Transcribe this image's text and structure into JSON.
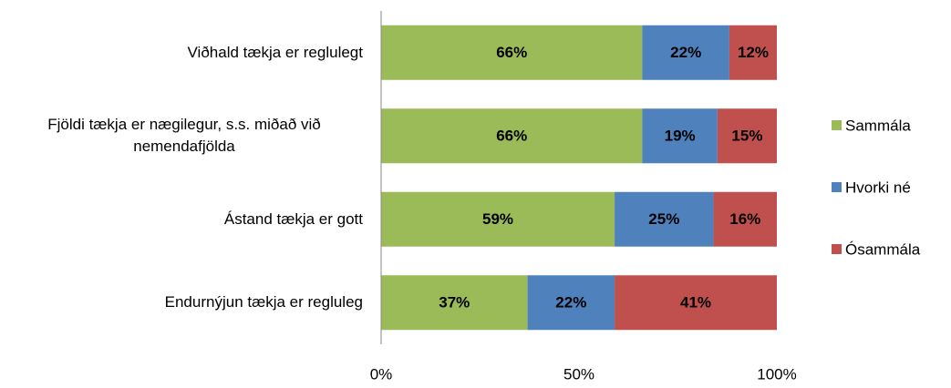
{
  "chart_data": {
    "type": "stacked-bar-horizontal",
    "categories": [
      "Viðhald tækja er reglulegt",
      "Fjöldi tækja er nægilegur, s.s. miðað við nemendafjölda",
      "Ástand tækja er gott",
      "Endurnýjun tækja er regluleg"
    ],
    "series": [
      {
        "name": "Sammála",
        "color": "#9bbb59",
        "values": [
          66,
          66,
          59,
          37
        ],
        "value_labels": [
          "66%",
          "66%",
          "59%",
          "37%"
        ]
      },
      {
        "name": "Hvorki né",
        "color": "#4f81bd",
        "values": [
          22,
          19,
          25,
          22
        ],
        "value_labels": [
          "22%",
          "19%",
          "25%",
          "22%"
        ]
      },
      {
        "name": "Ósammála",
        "color": "#c0504d",
        "values": [
          12,
          15,
          16,
          41
        ],
        "value_labels": [
          "12%",
          "15%",
          "16%",
          "41%"
        ]
      }
    ],
    "xlim": [
      0,
      100
    ],
    "xticks": [
      {
        "value": 0,
        "label": "0%"
      },
      {
        "value": 50,
        "label": "50%"
      },
      {
        "value": 100,
        "label": "100%"
      }
    ],
    "grid": false,
    "legend": "right"
  }
}
